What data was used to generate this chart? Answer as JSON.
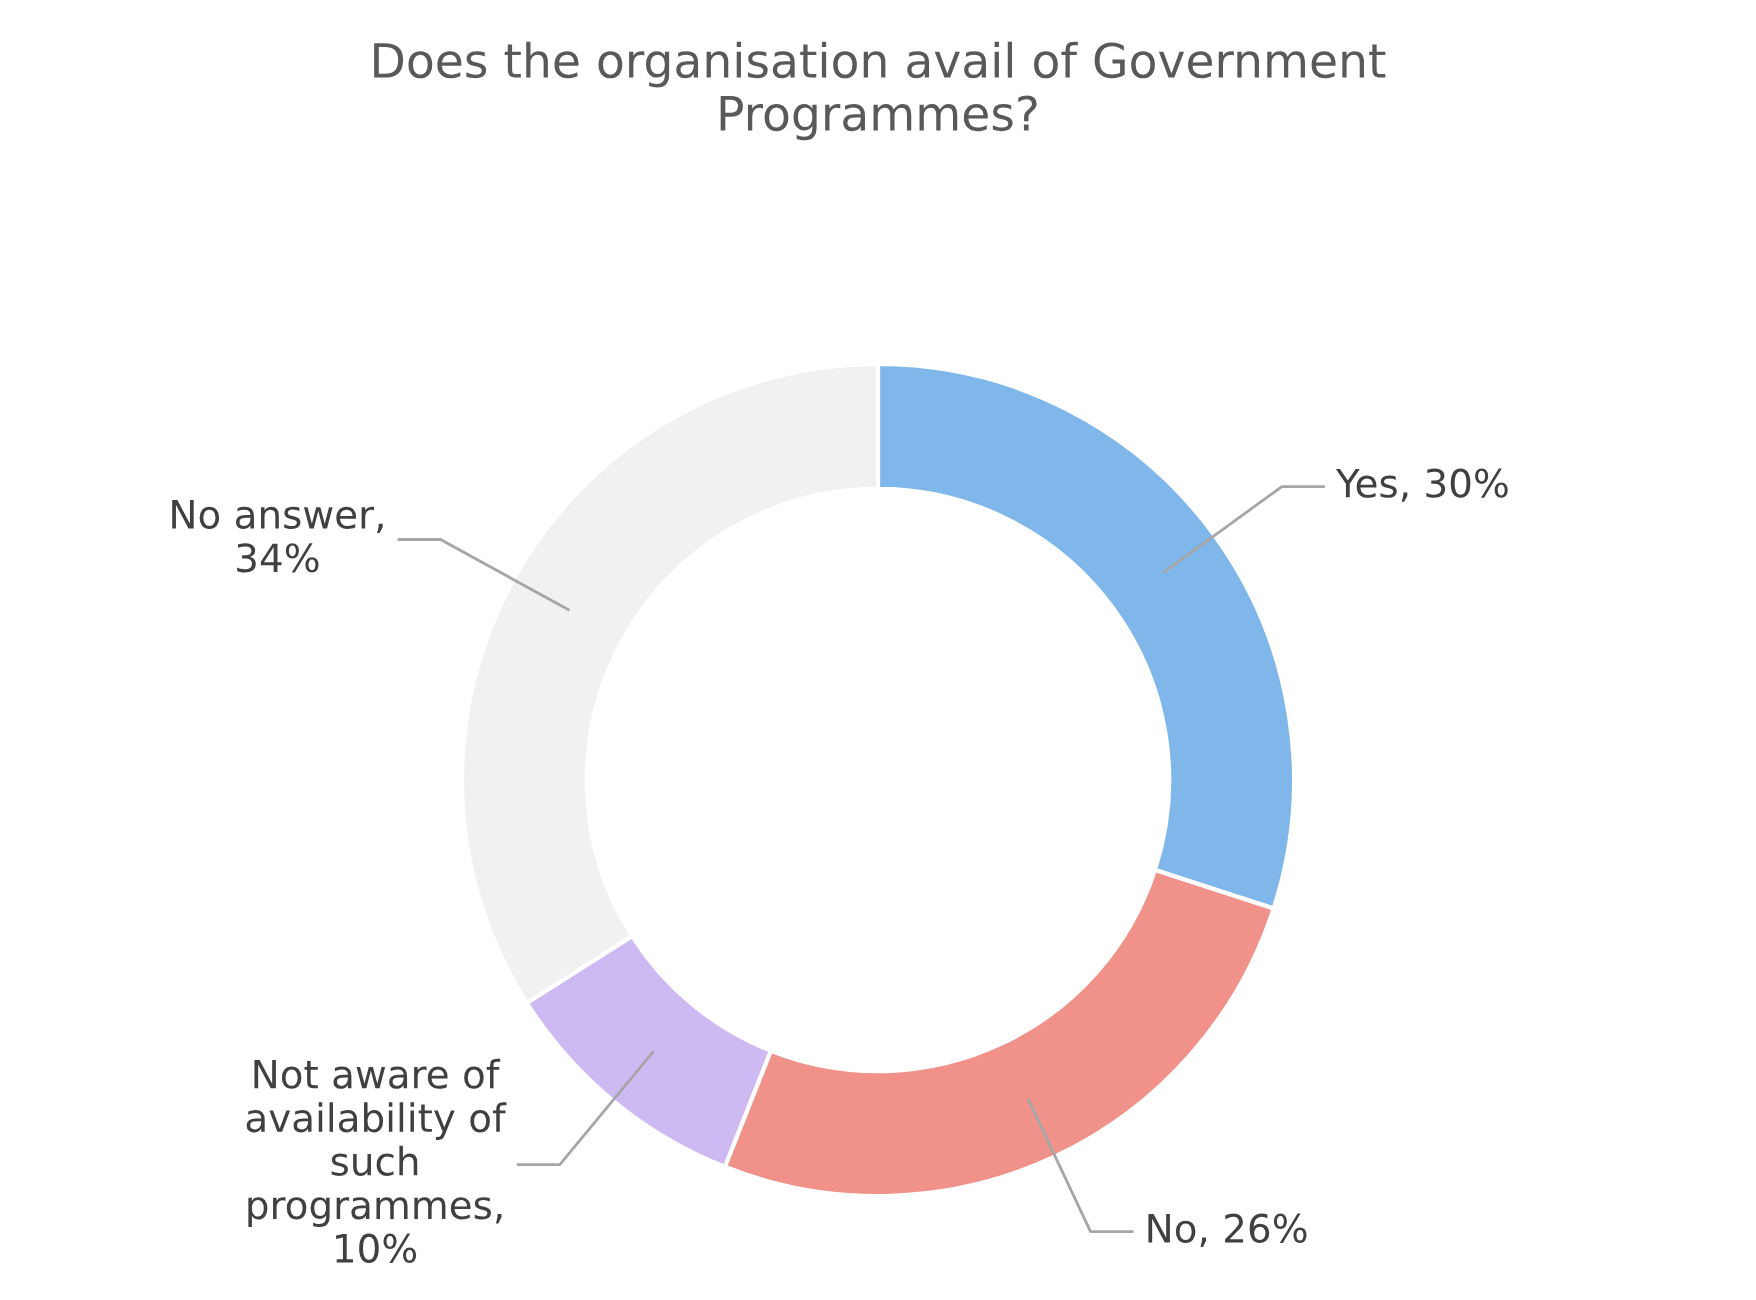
{
  "chart_data": {
    "type": "donut",
    "title": "Does the organisation avail of Government\nProgrammes?",
    "categories": [
      "Yes, 30%",
      "No, 26%",
      "Not aware of\navailability of\nsuch\nprogrammes,\n10%",
      "No answer,\n34%"
    ],
    "values": [
      30,
      26,
      10,
      34
    ],
    "colors": [
      "#7fb7ea",
      "#f0928a",
      "#cdbaf2",
      "#f1f1f1"
    ]
  }
}
